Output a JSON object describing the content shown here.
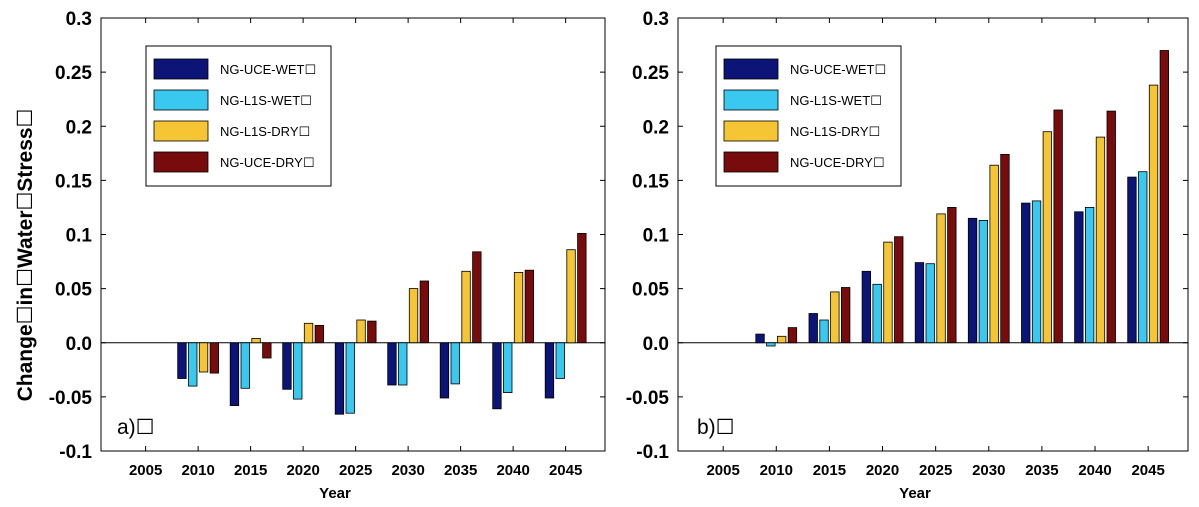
{
  "figure": {
    "ylabel": "Change☐in☐Water☐Stress☐",
    "xlabel": "Year"
  },
  "chart_data": [
    {
      "type": "bar",
      "panel_label": "a)☐",
      "categories": [
        "2005",
        "2010",
        "2015",
        "2020",
        "2025",
        "2030",
        "2035",
        "2040",
        "2045"
      ],
      "ylim": [
        -0.1,
        0.3
      ],
      "yticks": [
        "-0.1",
        "-0.05",
        "0.0",
        "0.05",
        "0.1",
        "0.15",
        "0.2",
        "0.25",
        "0.3"
      ],
      "ytick_values": [
        -0.1,
        -0.05,
        0.0,
        0.05,
        0.1,
        0.15,
        0.2,
        0.25,
        0.3
      ],
      "xlabel": "Year",
      "ylabel": "Change☐in☐Water☐Stress☐",
      "grid": false,
      "legend_position": "top-left",
      "series": [
        {
          "name": "NG-UCE-WET☐",
          "color": "#0c1478",
          "values": [
            0,
            -0.033,
            -0.058,
            -0.043,
            -0.066,
            -0.039,
            -0.051,
            -0.061,
            -0.051
          ]
        },
        {
          "name": "NG-L1S-WET☐",
          "color": "#38c8f0",
          "values": [
            0,
            -0.04,
            -0.042,
            -0.052,
            -0.065,
            -0.039,
            -0.038,
            -0.046,
            -0.033
          ]
        },
        {
          "name": "NG-L1S-DRY☐",
          "color": "#f6c534",
          "values": [
            0,
            -0.027,
            0.004,
            0.018,
            0.021,
            0.05,
            0.066,
            0.065,
            0.086
          ]
        },
        {
          "name": "NG-UCE-DRY☐",
          "color": "#780c0c",
          "values": [
            0,
            -0.028,
            -0.014,
            0.016,
            0.02,
            0.057,
            0.084,
            0.067,
            0.101
          ]
        }
      ]
    },
    {
      "type": "bar",
      "panel_label": "b)☐",
      "categories": [
        "2005",
        "2010",
        "2015",
        "2020",
        "2025",
        "2030",
        "2035",
        "2040",
        "2045"
      ],
      "ylim": [
        -0.1,
        0.3
      ],
      "yticks": [
        "-0.1",
        "-0.05",
        "0.0",
        "0.05",
        "0.1",
        "0.15",
        "0.2",
        "0.25",
        "0.3"
      ],
      "ytick_values": [
        -0.1,
        -0.05,
        0.0,
        0.05,
        0.1,
        0.15,
        0.2,
        0.25,
        0.3
      ],
      "xlabel": "Year",
      "ylabel": "",
      "grid": false,
      "legend_position": "top-left",
      "series": [
        {
          "name": "NG-UCE-WET☐",
          "color": "#0c1478",
          "values": [
            0,
            0.008,
            0.027,
            0.066,
            0.074,
            0.115,
            0.129,
            0.121,
            0.153
          ]
        },
        {
          "name": "NG-L1S-WET☐",
          "color": "#38c8f0",
          "values": [
            0,
            -0.003,
            0.021,
            0.054,
            0.073,
            0.113,
            0.131,
            0.125,
            0.158
          ]
        },
        {
          "name": "NG-L1S-DRY☐",
          "color": "#f6c534",
          "values": [
            0,
            0.006,
            0.047,
            0.093,
            0.119,
            0.164,
            0.195,
            0.19,
            0.238
          ]
        },
        {
          "name": "NG-UCE-DRY☐",
          "color": "#780c0c",
          "values": [
            0,
            0.014,
            0.051,
            0.098,
            0.125,
            0.174,
            0.215,
            0.214,
            0.27
          ]
        }
      ]
    }
  ]
}
